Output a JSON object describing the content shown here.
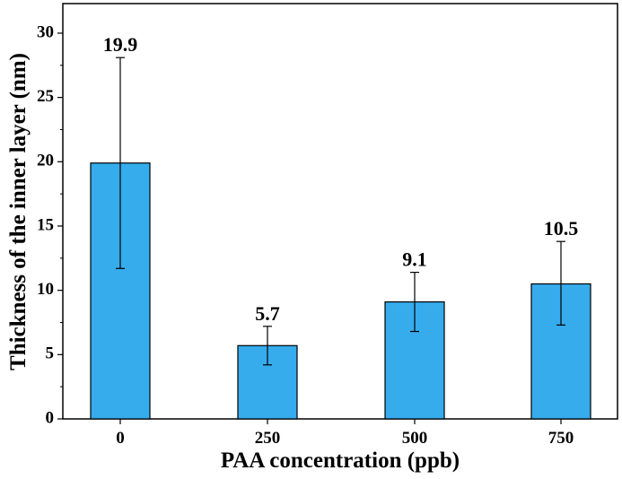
{
  "chart_data": {
    "type": "bar",
    "title": "",
    "xlabel": "PAA concentration (ppb)",
    "ylabel": "Thickness of the inner layer (nm)",
    "categories": [
      "0",
      "250",
      "500",
      "750"
    ],
    "values": [
      19.9,
      5.7,
      9.1,
      10.5
    ],
    "error_upper": [
      28.1,
      7.2,
      11.4,
      13.8
    ],
    "error_lower": [
      11.7,
      4.2,
      6.8,
      7.3
    ],
    "data_labels": [
      "19.9",
      "5.7",
      "9.1",
      "10.5"
    ],
    "ylim": [
      0,
      32.3
    ],
    "yticks": [
      0,
      5,
      10,
      15,
      20,
      25,
      30
    ],
    "ytick_labels": [
      "0",
      "5",
      "10",
      "15",
      "20",
      "25",
      "30"
    ],
    "grid": false,
    "legend": "none",
    "colors": {
      "bar_fill": "#36ACEC",
      "bar_stroke": "#000000",
      "axis": "#000000"
    }
  }
}
